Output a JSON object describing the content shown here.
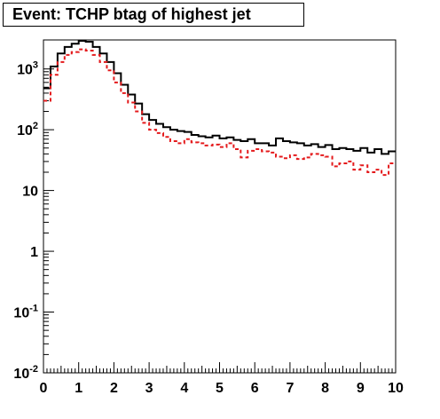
{
  "chart_data": {
    "type": "histogram",
    "title": "Event: TCHP btag of highest jet",
    "xlabel": "",
    "ylabel": "",
    "xlim": [
      0,
      10
    ],
    "ylim": [
      0.01,
      3000
    ],
    "y_scale": "log",
    "x_ticks": [
      "0",
      "1",
      "2",
      "3",
      "4",
      "5",
      "6",
      "7",
      "8",
      "9",
      "10"
    ],
    "y_ticks": [
      {
        "base": "10",
        "exp": "-2"
      },
      {
        "base": "10",
        "exp": "-1"
      },
      {
        "base": "1",
        "exp": ""
      },
      {
        "base": "10",
        "exp": ""
      },
      {
        "base": "10",
        "exp": "2"
      },
      {
        "base": "10",
        "exp": "3"
      }
    ],
    "bins": 50,
    "grid": false,
    "series": [
      {
        "color": "#000000",
        "style": "solid",
        "values": [
          480,
          1100,
          1800,
          2300,
          2600,
          2900,
          2800,
          2300,
          1800,
          1300,
          850,
          550,
          380,
          270,
          180,
          145,
          125,
          110,
          100,
          95,
          92,
          82,
          78,
          75,
          80,
          72,
          75,
          68,
          65,
          70,
          60,
          60,
          55,
          72,
          65,
          62,
          60,
          55,
          58,
          52,
          56,
          48,
          50,
          48,
          45,
          50,
          42,
          48,
          40,
          44
        ]
      },
      {
        "color": "#e41a1c",
        "style": "dashed",
        "values": [
          300,
          800,
          1300,
          1700,
          1900,
          2100,
          2000,
          1700,
          1300,
          950,
          600,
          400,
          280,
          200,
          130,
          100,
          88,
          76,
          65,
          60,
          70,
          62,
          60,
          55,
          57,
          52,
          60,
          48,
          35,
          45,
          48,
          44,
          42,
          36,
          34,
          38,
          33,
          35,
          40,
          38,
          36,
          25,
          28,
          30,
          22,
          26,
          20,
          22,
          18,
          28
        ]
      }
    ]
  }
}
